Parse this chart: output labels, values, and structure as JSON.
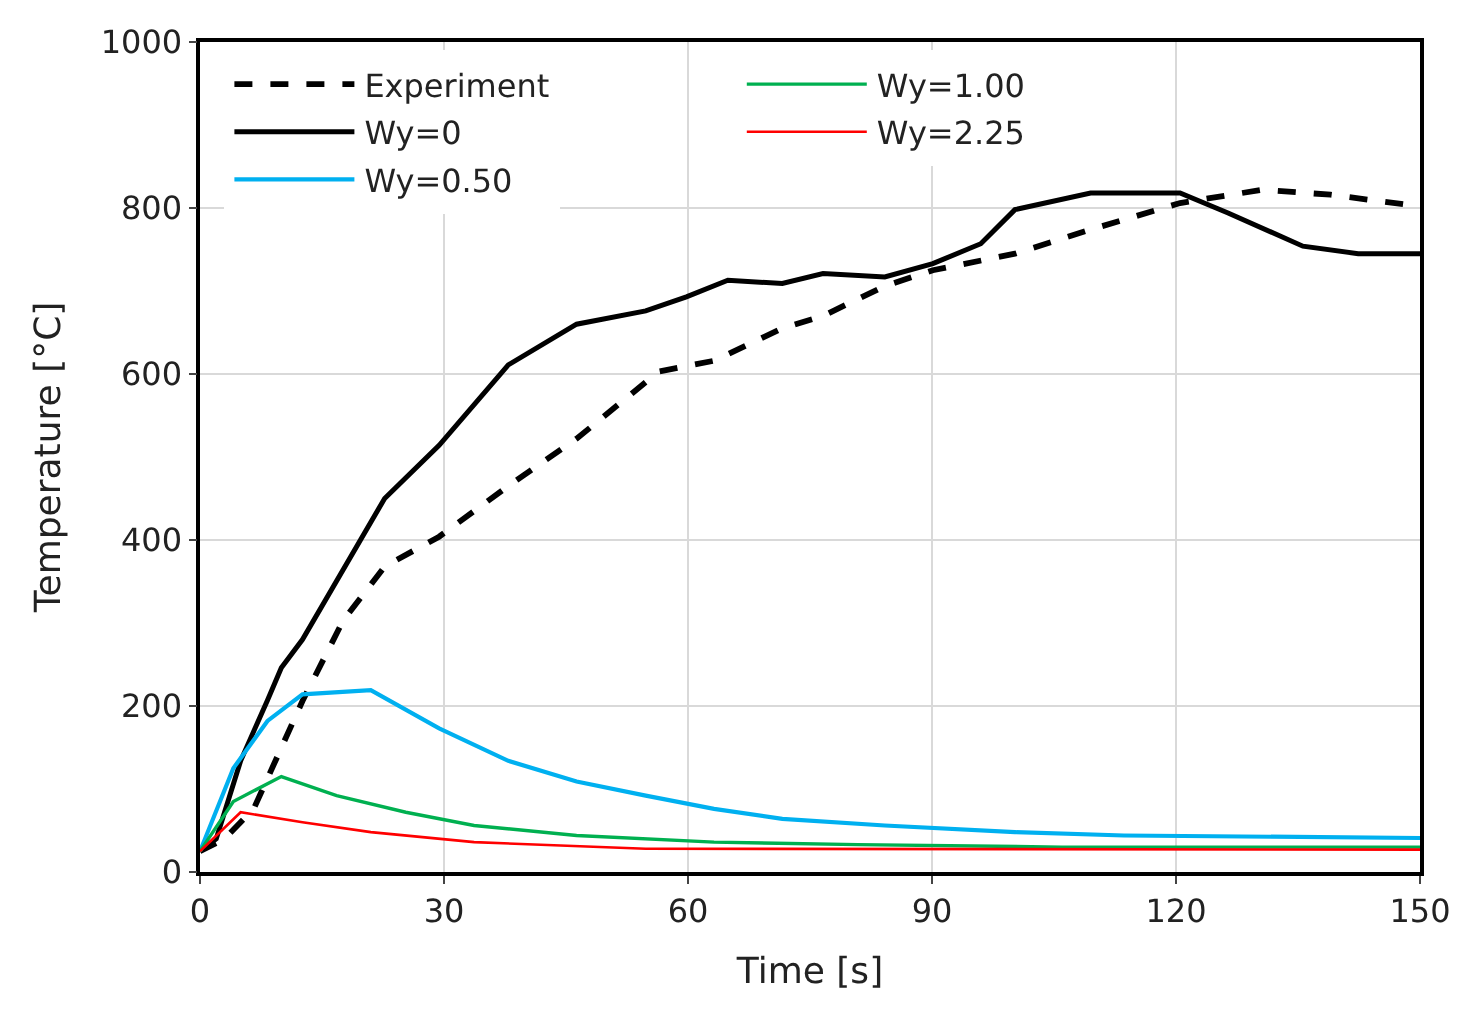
{
  "chart_data": {
    "type": "line",
    "xlabel": "Time [s]",
    "ylabel": "Temperature [°C]",
    "xlim": [
      0,
      150
    ],
    "xticks": [
      0,
      30,
      60,
      90,
      120,
      150
    ],
    "ylim": [
      0,
      1000
    ],
    "yticks": [
      0,
      200,
      400,
      600,
      800,
      1000
    ],
    "grid": true,
    "legend": "top left",
    "marker": "none",
    "series": [
      {
        "name": "Experiment",
        "color": "#000000",
        "line_style": "dashed",
        "x": [
          0,
          3,
          6.6,
          12.6,
          17.6,
          22.7,
          29.4,
          37.9,
          46.3,
          56.4,
          63.2,
          71.6,
          76.6,
          84.2,
          90.1,
          100.2,
          109.5,
          120.5,
          130.6,
          139,
          150
        ],
        "values": [
          25,
          40,
          76,
          206,
          303,
          368,
          404,
          465,
          522,
          603,
          616,
          655,
          670,
          706,
          725,
          745,
          774,
          806,
          822,
          816,
          802
        ]
      },
      {
        "name": "Wy=0",
        "color": "#000000",
        "line_style": "solid",
        "x": [
          0,
          2,
          5,
          8.3,
          10,
          12.6,
          22.7,
          29.4,
          37.9,
          46.3,
          54.8,
          59.8,
          64.9,
          71.6,
          76.6,
          84.2,
          90.1,
          96,
          100.2,
          109.5,
          120.5,
          126.4,
          135.6,
          142.4,
          150
        ],
        "values": [
          25,
          40,
          134,
          207,
          246,
          280,
          450,
          514,
          611,
          660,
          676,
          693,
          713,
          709,
          721,
          717,
          733,
          757,
          798,
          818,
          818,
          794,
          754,
          745,
          745
        ]
      },
      {
        "name": "Wy=0.50",
        "color": "#00b0f0",
        "line_style": "solid",
        "x": [
          0,
          4.1,
          8.3,
          12.6,
          21,
          29.4,
          37.9,
          46.3,
          54.8,
          63.2,
          71.6,
          84.2,
          100.2,
          113.6,
          150
        ],
        "values": [
          25,
          125,
          182,
          214,
          219,
          173,
          134,
          109,
          92,
          76,
          64,
          56,
          48,
          44,
          41
        ]
      },
      {
        "name": "Wy=1.00",
        "color": "#00b050",
        "line_style": "solid",
        "x": [
          0,
          4.1,
          10,
          16.8,
          25.3,
          33.7,
          46.3,
          63.2,
          80.9,
          106,
          150
        ],
        "values": [
          25,
          85,
          115,
          92,
          72,
          56,
          44,
          36,
          33,
          30,
          30
        ]
      },
      {
        "name": "Wy=2.25",
        "color": "#ff0000",
        "line_style": "solid",
        "x": [
          0,
          5,
          12.6,
          21,
          33.7,
          54.8,
          150
        ],
        "values": [
          25,
          72,
          60,
          48,
          36,
          28,
          27
        ]
      }
    ]
  }
}
